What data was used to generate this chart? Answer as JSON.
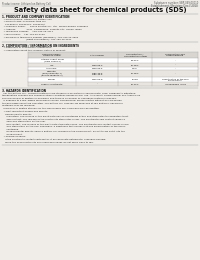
{
  "bg_color": "#f0ede8",
  "header_left": "Product name: Lithium Ion Battery Cell",
  "header_right_l1": "Substance number: SBP-049-00010",
  "header_right_l2": "Establishment / Revision: Dec.7.2010",
  "title": "Safety data sheet for chemical products (SDS)",
  "s1_title": "1. PRODUCT AND COMPANY IDENTIFICATION",
  "s1_lines": [
    "  • Product name: Lithium Ion Battery Cell",
    "  • Product code: Cylindrical-type cell",
    "    SV18650U, SV18650G, SV18650A",
    "  • Company name:      Sanyo Electric Co., Ltd.  Mobile Energy Company",
    "  • Address:              2001  Kamikosaka, Sumoto-City, Hyogo, Japan",
    "  • Telephone number:    +81-799-26-4111",
    "  • Fax number:    +81-799-26-4129",
    "  • Emergency telephone number (Weekday): +81-799-26-3962",
    "                                (Night and holiday): +81-799-26-4101"
  ],
  "s2_title": "2. COMPOSITION / INFORMATION ON INGREDIENTS",
  "s2_l1": "  • Substance or preparation: Preparation",
  "s2_l2": "  • Information about the chemical nature of product:",
  "tbl_cols": [
    28,
    76,
    118,
    152,
    198
  ],
  "tbl_hdr": [
    "Chemical name /\nCommon name",
    "CAS number",
    "Concentration /\nConcentration range",
    "Classification and\nhazard labeling"
  ],
  "tbl_rows": [
    [
      "Lithium cobalt oxide\n(LiMn Co3PO4)",
      "-",
      "30-50%",
      "-"
    ],
    [
      "Iron",
      "7439-89-6",
      "15-25%",
      "-"
    ],
    [
      "Aluminum",
      "7429-90-5",
      "2-5%",
      "-"
    ],
    [
      "Graphite\n(fine/r graphite-1)\n(all fine graphite-1)",
      "7782-42-5\n7782-42-5",
      "10-25%",
      "-"
    ],
    [
      "Copper",
      "7440-50-8",
      "5-15%",
      "Sensitization of the skin\ngroup R43.2"
    ],
    [
      "Organic electrolyte",
      "-",
      "10-20%",
      "Inflammable liquid"
    ]
  ],
  "tbl_row_h": [
    5.5,
    3.5,
    3.5,
    6.5,
    5.5,
    3.5
  ],
  "s3_title": "3. HAZARDS IDENTIFICATION",
  "s3_paras": [
    "  For the battery cell, chemical materials are stored in a hermetically-sealed metal case, designed to withstand",
    "temperature changes and chemical-stress conditions during normal use. As a result, during normal use, there is no",
    "physical danger of ignition or explosion and there is no danger of hazardous materials leakage.",
    "  If exposed to a fire, added mechanical shocks, decomposed, whose electric without any measures,",
    "the gas inside cannot be operated. The battery cell case will be breached at fire patterns, hazardous",
    "materials may be released.",
    "  Moreover, if heated strongly by the surrounding fire, some gas may be emitted."
  ],
  "s3_bullet1": "  • Most important hazard and effects:",
  "s3_human": "    Human health effects:",
  "s3_human_lines": [
    "      Inhalation: The release of the electrolyte has an anesthesia action and stimulates to respiratory tract.",
    "      Skin contact: The release of the electrolyte stimulates a skin. The electrolyte skin contact causes a",
    "      sore and stimulation on the skin.",
    "      Eye contact: The release of the electrolyte stimulates eyes. The electrolyte eye contact causes a sore",
    "      and stimulation on the eye. Especially, a substance that causes a strong inflammation of the eye is",
    "      contained.",
    "      Environmental effects: Since a battery cell remains in the environment, do not throw out it into the",
    "      environment."
  ],
  "s3_specific": "  • Specific hazards:",
  "s3_specific_lines": [
    "    If the electrolyte contacts with water, it will generate detrimental hydrogen fluoride.",
    "    Since the used electrolyte is inflammable liquid, do not bring close to fire."
  ],
  "line_color": "#999999",
  "text_color": "#222222",
  "header_color": "#555555",
  "tbl_hdr_bg": "#d8d5d0",
  "tbl_border": "#aaaaaa"
}
